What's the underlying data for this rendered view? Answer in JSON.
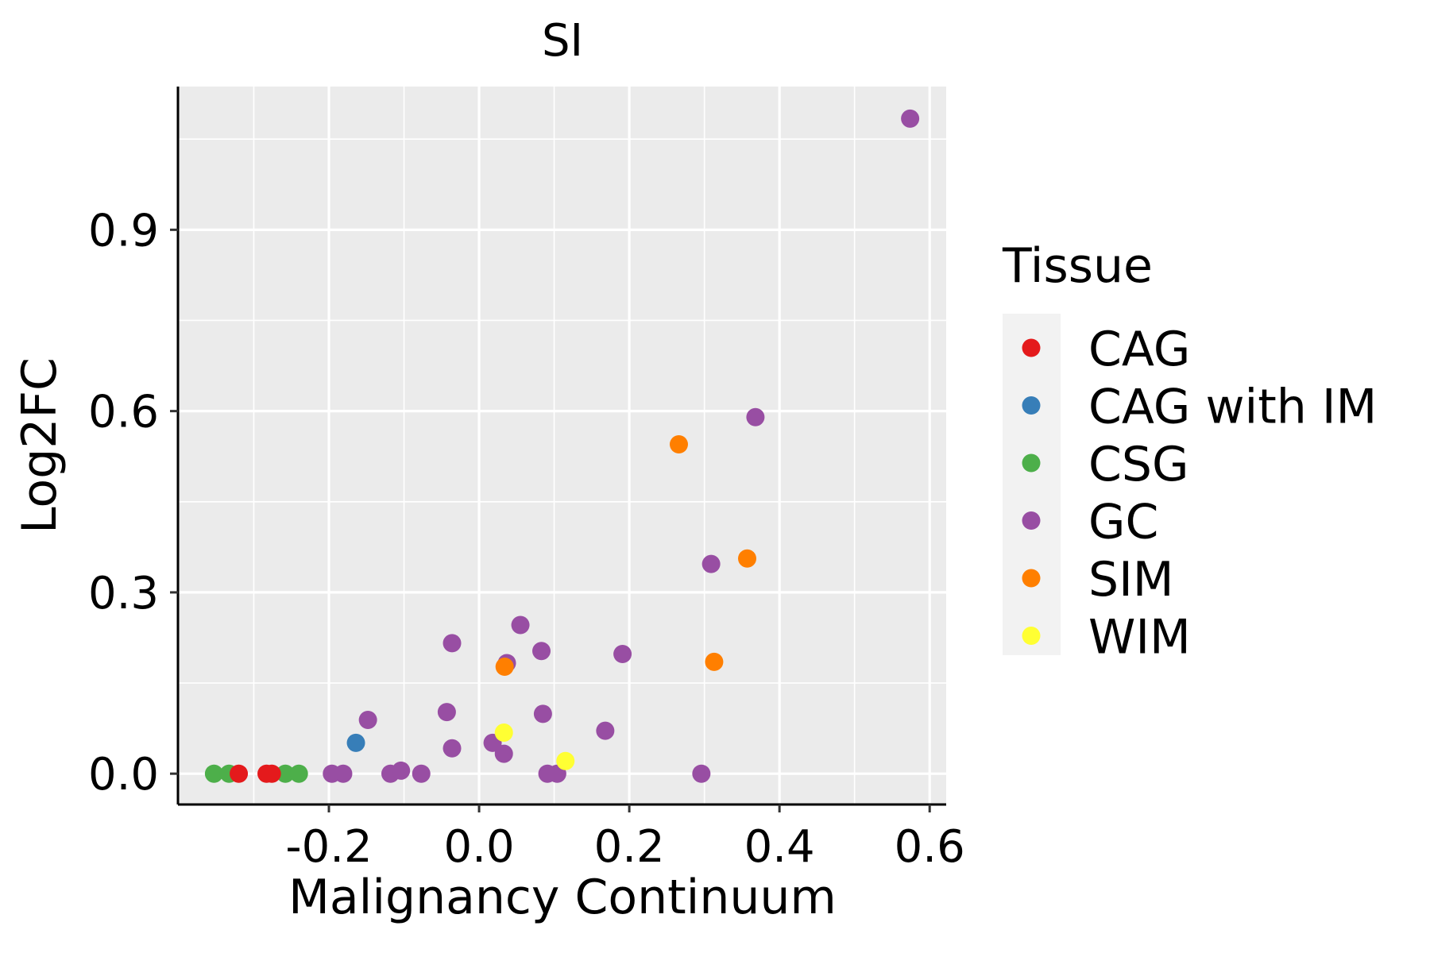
{
  "chart_data": {
    "type": "scatter",
    "title": "SI",
    "xlabel": "Malignancy Continuum",
    "ylabel": "Log2FC",
    "xlim": [
      -0.401,
      0.622
    ],
    "ylim": [
      -0.051,
      1.137
    ],
    "x_ticks": [
      -0.2,
      0.0,
      0.2,
      0.4,
      0.6
    ],
    "x_tick_labels": [
      "-0.2",
      "0.0",
      "0.2",
      "0.4",
      "0.6"
    ],
    "y_ticks": [
      0.0,
      0.3,
      0.6,
      0.9
    ],
    "y_tick_labels": [
      "0.0",
      "0.3",
      "0.6",
      "0.9"
    ],
    "grid": true,
    "legend": {
      "title": "Tissue",
      "position": "right",
      "entries": [
        {
          "name": "CAG",
          "color": "#E41A1C"
        },
        {
          "name": "CAG with IM",
          "color": "#377EB8"
        },
        {
          "name": "CSG",
          "color": "#4DAF4A"
        },
        {
          "name": "GC",
          "color": "#984EA3"
        },
        {
          "name": "SIM",
          "color": "#FF7F00"
        },
        {
          "name": "WIM",
          "color": "#FFFF33"
        }
      ]
    },
    "series": [
      {
        "name": "CSG",
        "color": "#4DAF4A",
        "points": [
          {
            "x": -0.353,
            "y": 0.0
          },
          {
            "x": -0.333,
            "y": 0.0
          },
          {
            "x": -0.258,
            "y": 0.0
          },
          {
            "x": -0.24,
            "y": 0.0
          }
        ]
      },
      {
        "name": "CAG",
        "color": "#E41A1C",
        "points": [
          {
            "x": -0.32,
            "y": 0.0
          },
          {
            "x": -0.283,
            "y": 0.0
          },
          {
            "x": -0.276,
            "y": 0.0
          }
        ]
      },
      {
        "name": "CAG with IM",
        "color": "#377EB8",
        "points": [
          {
            "x": -0.164,
            "y": 0.051
          }
        ]
      },
      {
        "name": "GC",
        "color": "#984EA3",
        "points": [
          {
            "x": 0.574,
            "y": 1.084
          },
          {
            "x": 0.368,
            "y": 0.59
          },
          {
            "x": 0.309,
            "y": 0.347
          },
          {
            "x": 0.055,
            "y": 0.246
          },
          {
            "x": -0.036,
            "y": 0.216
          },
          {
            "x": 0.083,
            "y": 0.203
          },
          {
            "x": 0.191,
            "y": 0.198
          },
          {
            "x": 0.037,
            "y": 0.183
          },
          {
            "x": -0.148,
            "y": 0.089
          },
          {
            "x": -0.043,
            "y": 0.102
          },
          {
            "x": 0.085,
            "y": 0.099
          },
          {
            "x": 0.168,
            "y": 0.071
          },
          {
            "x": -0.036,
            "y": 0.042
          },
          {
            "x": 0.018,
            "y": 0.051
          },
          {
            "x": 0.033,
            "y": 0.033
          },
          {
            "x": -0.196,
            "y": 0.0
          },
          {
            "x": -0.181,
            "y": 0.0
          },
          {
            "x": -0.118,
            "y": 0.0
          },
          {
            "x": -0.104,
            "y": 0.005
          },
          {
            "x": -0.077,
            "y": 0.0
          },
          {
            "x": 0.091,
            "y": 0.0
          },
          {
            "x": 0.104,
            "y": 0.0
          },
          {
            "x": 0.296,
            "y": 0.0
          }
        ]
      },
      {
        "name": "SIM",
        "color": "#FF7F00",
        "points": [
          {
            "x": 0.266,
            "y": 0.545
          },
          {
            "x": 0.357,
            "y": 0.356
          },
          {
            "x": 0.313,
            "y": 0.185
          },
          {
            "x": 0.034,
            "y": 0.177
          }
        ]
      },
      {
        "name": "WIM",
        "color": "#FFFF33",
        "points": [
          {
            "x": 0.033,
            "y": 0.068
          },
          {
            "x": 0.115,
            "y": 0.021
          }
        ]
      }
    ]
  }
}
